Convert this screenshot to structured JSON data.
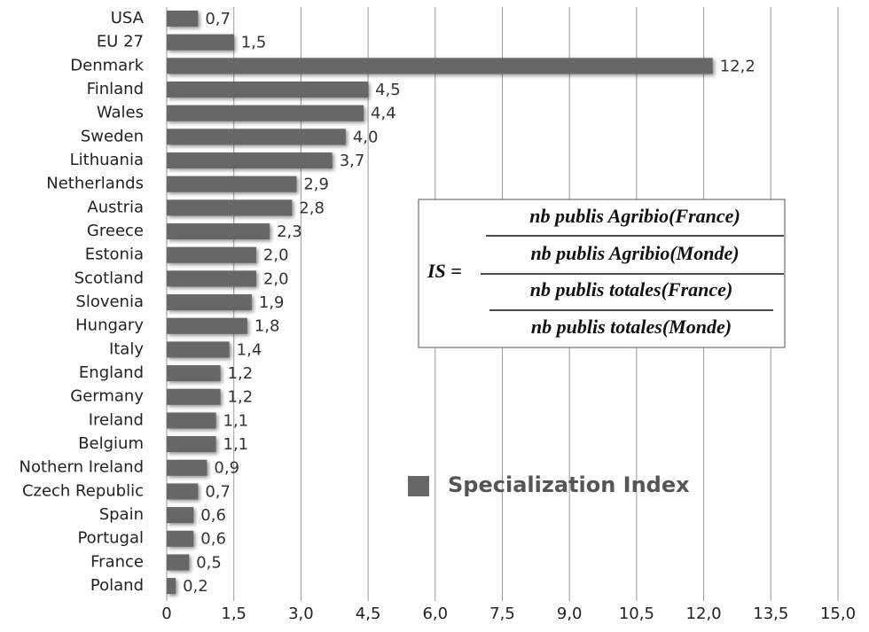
{
  "chart_data": {
    "type": "hbar",
    "categories": [
      "USA",
      "EU 27",
      "Denmark",
      "Finland",
      "Wales",
      "Sweden",
      "Lithuania",
      "Netherlands",
      "Austria",
      "Greece",
      "Estonia",
      "Scotland",
      "Slovenia",
      "Hungary",
      "Italy",
      "England",
      "Germany",
      "Ireland",
      "Belgium",
      "Nothern Ireland",
      "Czech Republic",
      "Spain",
      "Portugal",
      "France",
      "Poland"
    ],
    "series": [
      {
        "name": "Specialization Index",
        "color": "#676767",
        "values": [
          0.7,
          1.5,
          12.2,
          4.5,
          4.4,
          4.0,
          3.7,
          2.9,
          2.8,
          2.3,
          2.0,
          2.0,
          1.9,
          1.8,
          1.4,
          1.2,
          1.2,
          1.1,
          1.1,
          0.9,
          0.7,
          0.6,
          0.6,
          0.5,
          0.2
        ],
        "value_labels": [
          "0,7",
          "1,5",
          "12,2",
          "4,5",
          "4,4",
          "4,0",
          "3,7",
          "2,9",
          "2,8",
          "2,3",
          "2,0",
          "2,0",
          "1,9",
          "1,8",
          "1,4",
          "1,2",
          "1,2",
          "1,1",
          "1,1",
          "0,9",
          "0,7",
          "0,6",
          "0,6",
          "0,5",
          "0,2"
        ]
      }
    ],
    "xlim": [
      0,
      15
    ],
    "xticks": [
      0,
      {
        "value": 1.5,
        "label": "1,5"
      },
      {
        "value": 3,
        "label": "3,0"
      },
      {
        "value": 4.5,
        "label": "4,5"
      },
      {
        "value": 6,
        "label": "6,0"
      },
      {
        "value": 7.5,
        "label": "7,5"
      },
      {
        "value": 9,
        "label": "9,0"
      },
      {
        "value": 10.5,
        "label": "10,5"
      },
      {
        "value": 12,
        "label": "12,0"
      },
      {
        "value": 13.5,
        "label": "13,5"
      },
      {
        "value": 15,
        "label": "15,0"
      }
    ],
    "grid": true,
    "formula": {
      "lhs": "IS =",
      "top_num": "nb publis Agribio(France)",
      "top_den": "nb publis Agribio(Monde)",
      "bottom_num": "nb publis totales(France)",
      "bottom_den": "nb publis totales(Monde)"
    }
  }
}
